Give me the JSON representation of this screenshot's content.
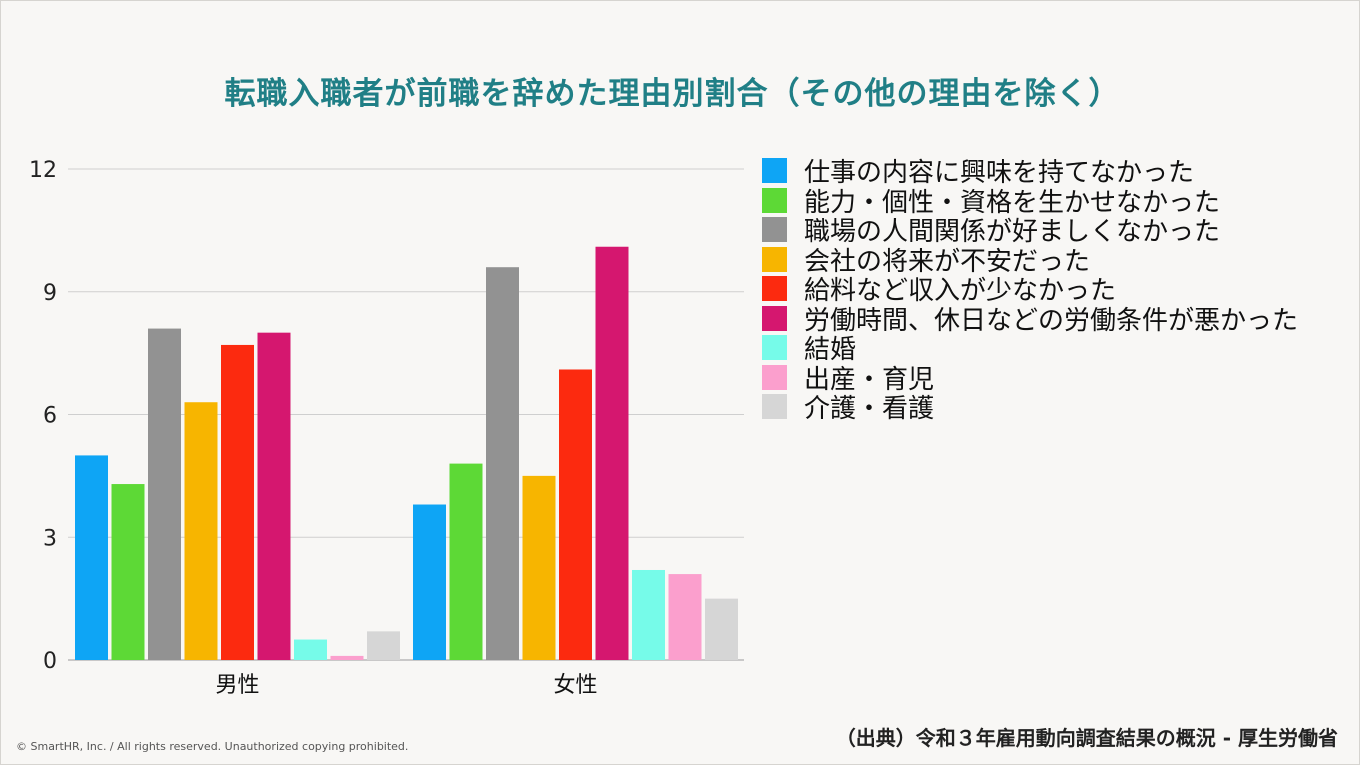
{
  "title": "転職入職者が前職を辞めた理由別割合（その他の理由を除く）",
  "source": "（出典）令和３年雇用動向調査結果の概況 - 厚生労働省",
  "copyright": "© SmartHR, Inc. / All rights reserved. Unauthorized copying prohibited.",
  "chart_data": {
    "type": "bar",
    "title": "転職入職者が前職を辞めた理由別割合（その他の理由を除く）",
    "xlabel": "",
    "ylabel": "",
    "ylim": [
      0,
      12
    ],
    "yticks": [
      0,
      3,
      6,
      9,
      12
    ],
    "grid": true,
    "legend_position": "right",
    "categories": [
      "男性",
      "女性"
    ],
    "series": [
      {
        "name": "仕事の内容に興味を持てなかった",
        "color": "#0ea5f5",
        "values": [
          5.0,
          3.8
        ]
      },
      {
        "name": "能力・個性・資格を生かせなかった",
        "color": "#5dd936",
        "values": [
          4.3,
          4.8
        ]
      },
      {
        "name": "職場の人間関係が好ましくなかった",
        "color": "#929292",
        "values": [
          8.1,
          9.6
        ]
      },
      {
        "name": "会社の将来が不安だった",
        "color": "#f7b500",
        "values": [
          6.3,
          4.5
        ]
      },
      {
        "name": "給料など収入が少なかった",
        "color": "#fc2a0f",
        "values": [
          7.7,
          7.1
        ]
      },
      {
        "name": "労働時間、休日などの労働条件が悪かった",
        "color": "#d5176f",
        "values": [
          8.0,
          10.1
        ]
      },
      {
        "name": "結婚",
        "color": "#76fbe9",
        "values": [
          0.5,
          2.2
        ]
      },
      {
        "name": "出産・育児",
        "color": "#fb9fcd",
        "values": [
          0.1,
          2.1
        ]
      },
      {
        "name": "介護・看護",
        "color": "#d6d6d6",
        "values": [
          0.7,
          1.5
        ]
      }
    ]
  }
}
